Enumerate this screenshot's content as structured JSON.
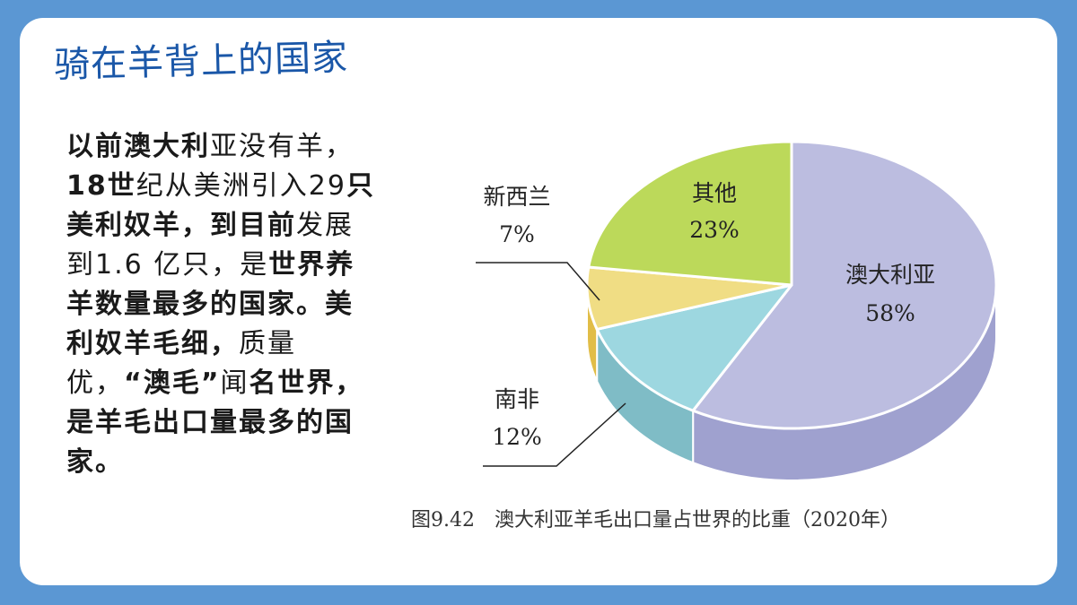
{
  "slide": {
    "title": "骑在羊背上的国家",
    "paragraph": [
      {
        "text": "以前澳大利",
        "bold": true
      },
      {
        "text": "亚没有羊，",
        "bold": false
      },
      {
        "text": "18世",
        "bold": true
      },
      {
        "text": "纪从美洲引入29",
        "bold": false
      },
      {
        "text": "只美利奴羊，到目前",
        "bold": true
      },
      {
        "text": "发展到1.6 亿只，是",
        "bold": false
      },
      {
        "text": "世界养羊数量最多的国家。美利奴羊毛细，",
        "bold": true
      },
      {
        "text": "质量优，",
        "bold": false
      },
      {
        "text": "“澳毛”",
        "bold": true
      },
      {
        "text": "闻",
        "bold": false
      },
      {
        "text": "名世界，是羊毛出口量最多的国家。",
        "bold": true
      }
    ]
  },
  "colors": {
    "background": "#5b97d3",
    "title": "#1a57a8",
    "australia": "#bcbde0",
    "south_africa": "#9dd7e0",
    "new_zealand": "#f0dd84",
    "other": "#bcd95a"
  },
  "chart_data": {
    "type": "pie",
    "caption": "图9.42　澳大利亚羊毛出口量占世界的比重（2020年）",
    "slices": [
      {
        "name": "澳大利亚",
        "value": 58,
        "label": "58%",
        "color": "#bcbde0",
        "side": "#9fa1cf"
      },
      {
        "name": "南非",
        "value": 12,
        "label": "12%",
        "color": "#9dd7e0",
        "side": "#7fbcc6"
      },
      {
        "name": "新西兰",
        "value": 7,
        "label": "7%",
        "color": "#f0dd84",
        "side": "#e1bd47"
      },
      {
        "name": "其他",
        "value": 23,
        "label": "23%",
        "color": "#bcd95a",
        "side": "#9fbd3f"
      }
    ]
  }
}
